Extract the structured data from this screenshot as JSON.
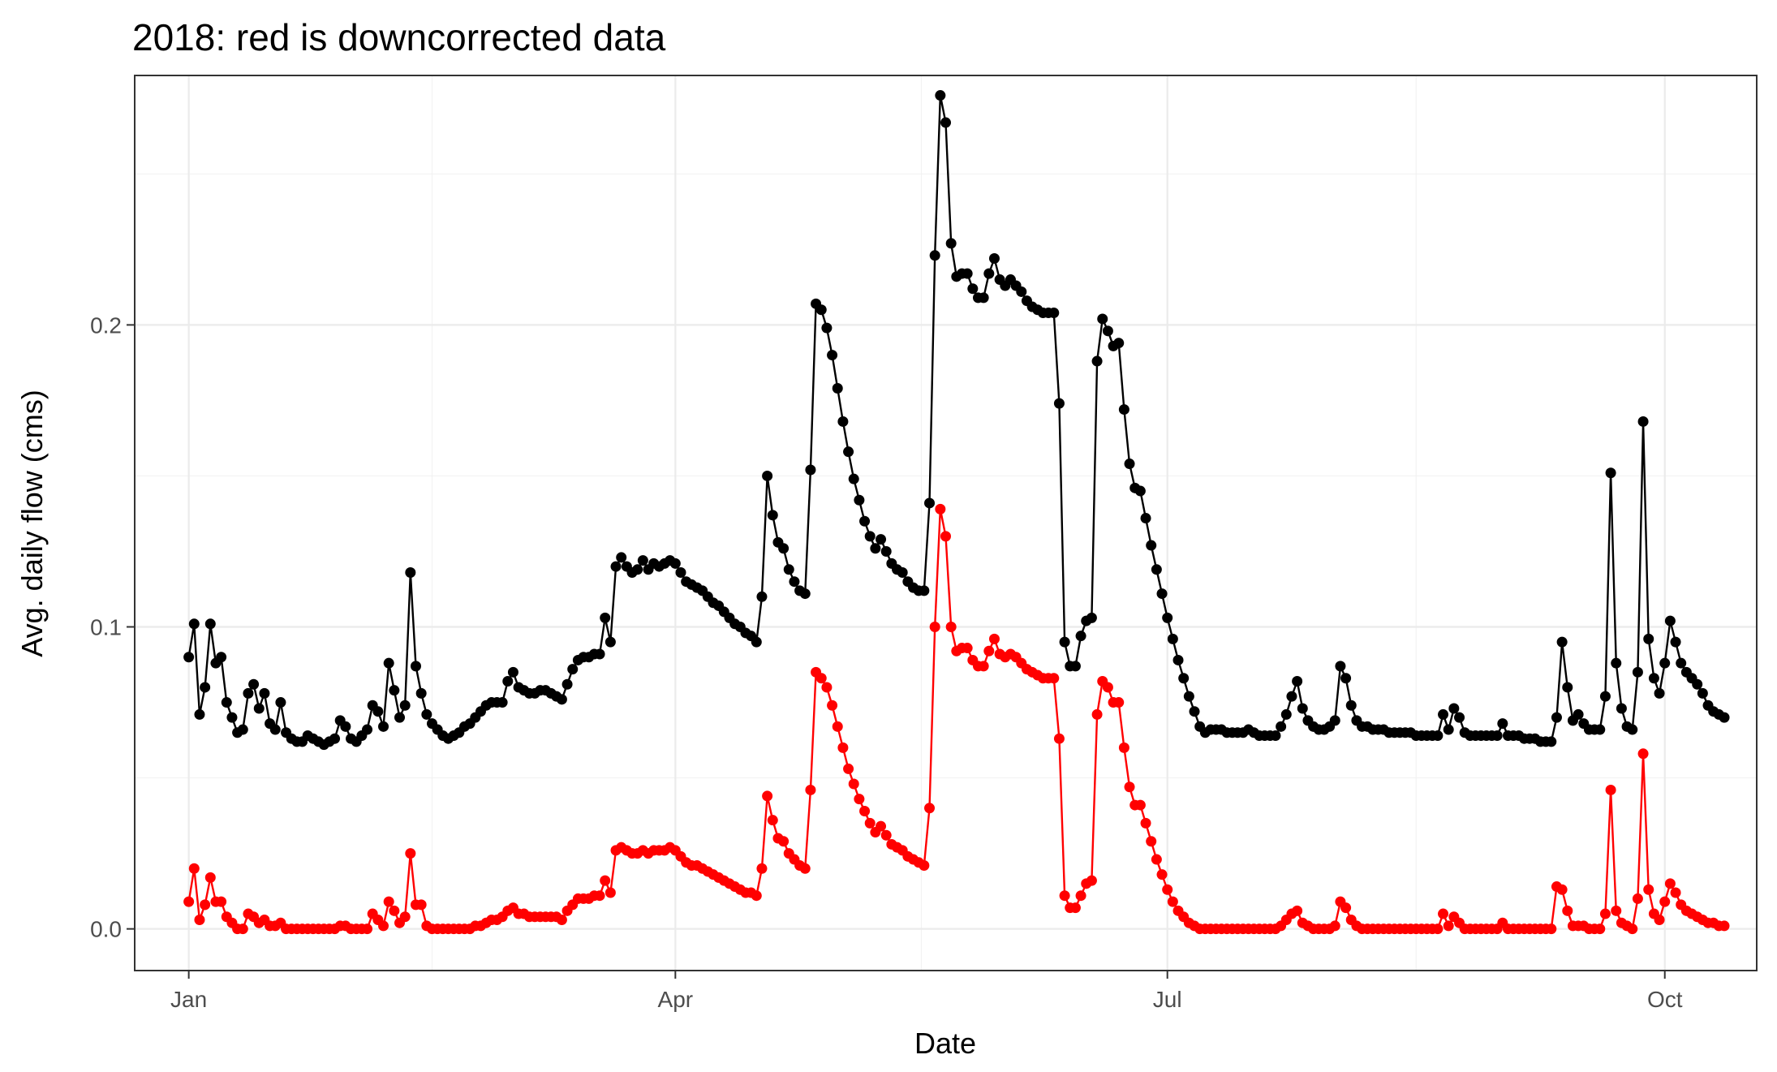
{
  "chart_data": {
    "type": "line",
    "title": "2018: red is downcorrected data",
    "xlabel": "Date",
    "ylabel": "Avg. daily flow (cms)",
    "x_start_date": "2018-01-01",
    "x_step_days": 1,
    "xlim": [
      "2017-12-22",
      "2018-10-18"
    ],
    "ylim": [
      -0.0138,
      0.2826
    ],
    "x_ticks": [
      {
        "date": "2018-01-01",
        "label": "Jan"
      },
      {
        "date": "2018-04-01",
        "label": "Apr"
      },
      {
        "date": "2018-07-01",
        "label": "Jul"
      },
      {
        "date": "2018-10-01",
        "label": "Oct"
      }
    ],
    "y_ticks": [
      {
        "value": 0.0,
        "label": "0.0"
      },
      {
        "value": 0.1,
        "label": "0.1"
      },
      {
        "value": 0.2,
        "label": "0.2"
      }
    ],
    "grid": true,
    "legend": "none",
    "series": [
      {
        "color": "#000000",
        "values": [
          0.09,
          0.101,
          0.071,
          0.08,
          0.101,
          0.088,
          0.09,
          0.075,
          0.07,
          0.065,
          0.066,
          0.078,
          0.081,
          0.073,
          0.078,
          0.068,
          0.066,
          0.075,
          0.065,
          0.063,
          0.062,
          0.062,
          0.064,
          0.063,
          0.062,
          0.061,
          0.062,
          0.063,
          0.069,
          0.067,
          0.063,
          0.062,
          0.064,
          0.066,
          0.074,
          0.072,
          0.067,
          0.088,
          0.079,
          0.07,
          0.074,
          0.118,
          0.087,
          0.078,
          0.071,
          0.068,
          0.066,
          0.064,
          0.063,
          0.064,
          0.065,
          0.067,
          0.068,
          0.07,
          0.072,
          0.074,
          0.075,
          0.075,
          0.075,
          0.082,
          0.085,
          0.08,
          0.079,
          0.078,
          0.078,
          0.079,
          0.079,
          0.078,
          0.077,
          0.076,
          0.081,
          0.086,
          0.089,
          0.09,
          0.09,
          0.091,
          0.091,
          0.103,
          0.095,
          0.12,
          0.123,
          0.12,
          0.118,
          0.119,
          0.122,
          0.119,
          0.121,
          0.12,
          0.121,
          0.122,
          0.121,
          0.118,
          0.115,
          0.114,
          0.113,
          0.112,
          0.11,
          0.108,
          0.107,
          0.105,
          0.103,
          0.101,
          0.1,
          0.098,
          0.097,
          0.095,
          0.11,
          0.15,
          0.137,
          0.128,
          0.126,
          0.119,
          0.115,
          0.112,
          0.111,
          0.152,
          0.207,
          0.205,
          0.199,
          0.19,
          0.179,
          0.168,
          0.158,
          0.149,
          0.142,
          0.135,
          0.13,
          0.126,
          0.129,
          0.125,
          0.121,
          0.119,
          0.118,
          0.115,
          0.113,
          0.112,
          0.112,
          0.141,
          0.223,
          0.276,
          0.267,
          0.227,
          0.216,
          0.217,
          0.217,
          0.212,
          0.209,
          0.209,
          0.217,
          0.222,
          0.215,
          0.213,
          0.215,
          0.213,
          0.211,
          0.208,
          0.206,
          0.205,
          0.204,
          0.204,
          0.204,
          0.174,
          0.095,
          0.087,
          0.087,
          0.097,
          0.102,
          0.103,
          0.188,
          0.202,
          0.198,
          0.193,
          0.194,
          0.172,
          0.154,
          0.146,
          0.145,
          0.136,
          0.127,
          0.119,
          0.111,
          0.103,
          0.096,
          0.089,
          0.083,
          0.077,
          0.072,
          0.067,
          0.065,
          0.066,
          0.066,
          0.066,
          0.065,
          0.065,
          0.065,
          0.065,
          0.066,
          0.065,
          0.064,
          0.064,
          0.064,
          0.064,
          0.067,
          0.071,
          0.077,
          0.082,
          0.073,
          0.069,
          0.067,
          0.066,
          0.066,
          0.067,
          0.069,
          0.087,
          0.083,
          0.074,
          0.069,
          0.067,
          0.067,
          0.066,
          0.066,
          0.066,
          0.065,
          0.065,
          0.065,
          0.065,
          0.065,
          0.064,
          0.064,
          0.064,
          0.064,
          0.064,
          0.071,
          0.066,
          0.073,
          0.07,
          0.065,
          0.064,
          0.064,
          0.064,
          0.064,
          0.064,
          0.064,
          0.068,
          0.064,
          0.064,
          0.064,
          0.063,
          0.063,
          0.063,
          0.062,
          0.062,
          0.062,
          0.07,
          0.095,
          0.08,
          0.069,
          0.071,
          0.068,
          0.066,
          0.066,
          0.066,
          0.077,
          0.151,
          0.088,
          0.073,
          0.067,
          0.066,
          0.085,
          0.168,
          0.096,
          0.083,
          0.078,
          0.088,
          0.102,
          0.095,
          0.088,
          0.085,
          0.083,
          0.081,
          0.078,
          0.074,
          0.072,
          0.071,
          0.07
        ]
      },
      {
        "color": "#ff0000",
        "values": [
          0.009,
          0.02,
          0.003,
          0.008,
          0.017,
          0.009,
          0.009,
          0.004,
          0.002,
          0.0,
          0.0,
          0.005,
          0.004,
          0.002,
          0.003,
          0.001,
          0.001,
          0.002,
          0.0,
          0.0,
          0.0,
          0.0,
          0.0,
          0.0,
          0.0,
          0.0,
          0.0,
          0.0,
          0.001,
          0.001,
          0.0,
          0.0,
          0.0,
          0.0,
          0.005,
          0.003,
          0.001,
          0.009,
          0.006,
          0.002,
          0.004,
          0.025,
          0.008,
          0.008,
          0.001,
          0.0,
          0.0,
          0.0,
          0.0,
          0.0,
          0.0,
          0.0,
          0.0,
          0.001,
          0.001,
          0.002,
          0.003,
          0.003,
          0.004,
          0.006,
          0.007,
          0.005,
          0.005,
          0.004,
          0.004,
          0.004,
          0.004,
          0.004,
          0.004,
          0.003,
          0.006,
          0.008,
          0.01,
          0.01,
          0.01,
          0.011,
          0.011,
          0.016,
          0.012,
          0.026,
          0.027,
          0.026,
          0.025,
          0.025,
          0.026,
          0.025,
          0.026,
          0.026,
          0.026,
          0.027,
          0.026,
          0.024,
          0.022,
          0.021,
          0.021,
          0.02,
          0.019,
          0.018,
          0.017,
          0.016,
          0.015,
          0.014,
          0.013,
          0.012,
          0.012,
          0.011,
          0.02,
          0.044,
          0.036,
          0.03,
          0.029,
          0.025,
          0.023,
          0.021,
          0.02,
          0.046,
          0.085,
          0.083,
          0.08,
          0.074,
          0.067,
          0.06,
          0.053,
          0.048,
          0.043,
          0.039,
          0.035,
          0.032,
          0.034,
          0.031,
          0.028,
          0.027,
          0.026,
          0.024,
          0.023,
          0.022,
          0.021,
          0.04,
          0.1,
          0.139,
          0.13,
          0.1,
          0.092,
          0.093,
          0.093,
          0.089,
          0.087,
          0.087,
          0.092,
          0.096,
          0.091,
          0.09,
          0.091,
          0.09,
          0.088,
          0.086,
          0.085,
          0.084,
          0.083,
          0.083,
          0.083,
          0.063,
          0.011,
          0.007,
          0.007,
          0.011,
          0.015,
          0.016,
          0.071,
          0.082,
          0.08,
          0.075,
          0.075,
          0.06,
          0.047,
          0.041,
          0.041,
          0.035,
          0.029,
          0.023,
          0.018,
          0.013,
          0.009,
          0.006,
          0.004,
          0.002,
          0.001,
          0.0,
          0.0,
          0.0,
          0.0,
          0.0,
          0.0,
          0.0,
          0.0,
          0.0,
          0.0,
          0.0,
          0.0,
          0.0,
          0.0,
          0.0,
          0.001,
          0.003,
          0.005,
          0.006,
          0.002,
          0.001,
          0.0,
          0.0,
          0.0,
          0.0,
          0.001,
          0.009,
          0.007,
          0.003,
          0.001,
          0.0,
          0.0,
          0.0,
          0.0,
          0.0,
          0.0,
          0.0,
          0.0,
          0.0,
          0.0,
          0.0,
          0.0,
          0.0,
          0.0,
          0.0,
          0.005,
          0.001,
          0.004,
          0.002,
          0.0,
          0.0,
          0.0,
          0.0,
          0.0,
          0.0,
          0.0,
          0.002,
          0.0,
          0.0,
          0.0,
          0.0,
          0.0,
          0.0,
          0.0,
          0.0,
          0.0,
          0.014,
          0.013,
          0.006,
          0.001,
          0.001,
          0.001,
          0.0,
          0.0,
          0.0,
          0.005,
          0.046,
          0.006,
          0.002,
          0.001,
          0.0,
          0.01,
          0.058,
          0.013,
          0.005,
          0.003,
          0.009,
          0.015,
          0.012,
          0.008,
          0.006,
          0.005,
          0.004,
          0.003,
          0.002,
          0.002,
          0.001,
          0.001
        ]
      }
    ]
  }
}
